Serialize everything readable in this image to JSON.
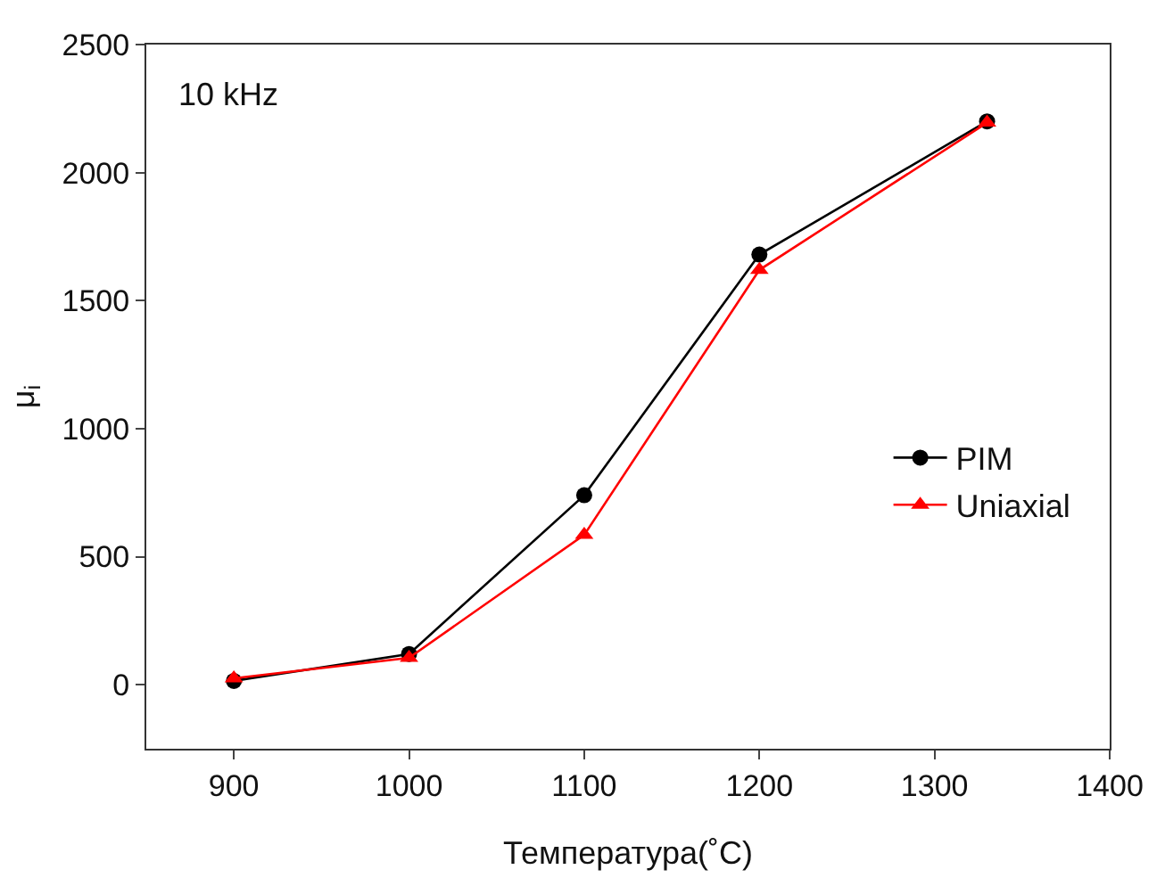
{
  "chart_data": {
    "type": "line",
    "xlabel": "Температура(˚C)",
    "ylabel": "μ$_{i}$",
    "x": [
      900,
      1000,
      1100,
      1200,
      1330
    ],
    "series": [
      {
        "name": "PIM",
        "color": "#000000",
        "marker": "circle",
        "values": [
          15,
          120,
          740,
          1680,
          2200
        ]
      },
      {
        "name": "Uniaxial",
        "color": "#ff0000",
        "marker": "triangle",
        "values": [
          25,
          105,
          585,
          1620,
          2195
        ]
      }
    ],
    "xlim": [
      850,
      1400
    ],
    "xticks": [
      900,
      1000,
      1100,
      1200,
      1300,
      1400
    ],
    "ylim": [
      -250,
      2500
    ],
    "yticks": [
      0,
      500,
      1000,
      1500,
      2000,
      2500
    ],
    "annotations": [
      "10 kHz"
    ],
    "legend": "bottom right",
    "line_style": "solid"
  }
}
